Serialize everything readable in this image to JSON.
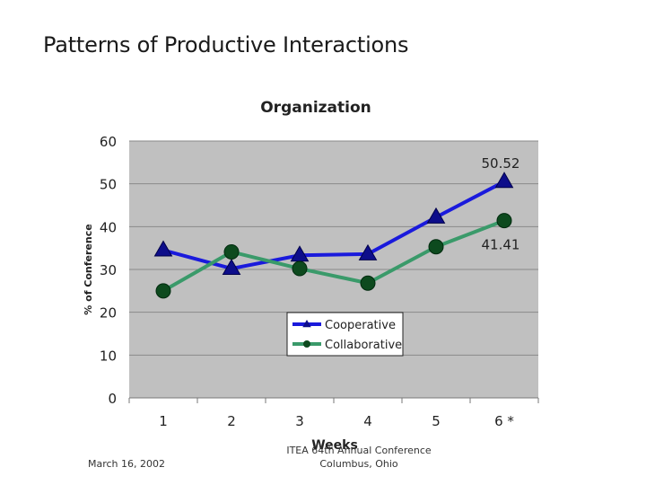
{
  "slide": {
    "title": "Patterns of Productive Interactions"
  },
  "footer": {
    "date": "March 16, 2002",
    "conference_line1": "ITEA 64th Annual Conference",
    "conference_line2": "Columbus, Ohio"
  },
  "chart_data": {
    "type": "line",
    "title": "Organization",
    "xlabel": "Weeks",
    "ylabel": "% of Conference",
    "categories": [
      "1",
      "2",
      "3",
      "4",
      "5",
      "6 *"
    ],
    "ylim": [
      0,
      60
    ],
    "yticks": [
      0,
      10,
      20,
      30,
      40,
      50,
      60
    ],
    "grid": true,
    "legend_position": "lower-middle inside plot",
    "series": [
      {
        "name": "Cooperative",
        "color": "#1a1adc",
        "marker": "triangle",
        "values": [
          34.5,
          30.2,
          33.3,
          33.6,
          42.2,
          50.52
        ]
      },
      {
        "name": "Collaborative",
        "color": "#3a9a6a",
        "marker": "circle",
        "values": [
          25.0,
          34.1,
          30.2,
          26.8,
          35.3,
          41.41
        ]
      }
    ],
    "annotations": [
      {
        "series": "Cooperative",
        "index": 5,
        "text": "50.52"
      },
      {
        "series": "Collaborative",
        "index": 5,
        "text": "41.41"
      }
    ]
  }
}
